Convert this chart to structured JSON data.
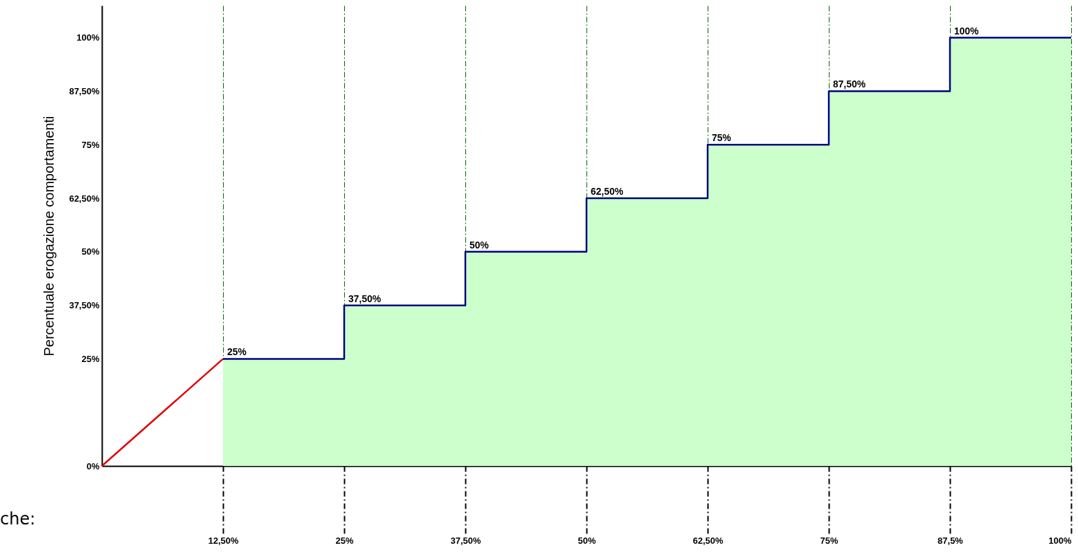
{
  "chart_data": {
    "type": "step",
    "ylabel": "Percentuale erogazione comportamenti",
    "x": [
      12.5,
      25,
      37.5,
      50,
      62.5,
      75,
      87.5,
      100
    ],
    "series": [
      {
        "type": "area",
        "color": "#ccffcc",
        "values": [
          25,
          37.5,
          50,
          62.5,
          75,
          87.5,
          100,
          100
        ]
      },
      {
        "type": "line",
        "color": "#e00000",
        "x": [
          0,
          12.5
        ],
        "values": [
          0,
          25
        ]
      },
      {
        "color": "#000080",
        "values": [
          25,
          37.5,
          50,
          62.5,
          75,
          87.5,
          100,
          100
        ],
        "value_labels": [
          "25%",
          "37,50%",
          "50%",
          "62,50%",
          "75%",
          "87,50%",
          "100%",
          null
        ]
      }
    ],
    "xlim": [
      0,
      100
    ],
    "ylim": [
      0,
      107.5
    ],
    "xticks": [
      {
        "value": 12.5,
        "label": "12,50%"
      },
      {
        "value": 25,
        "label": "25%"
      },
      {
        "value": 37.5,
        "label": "37,50%"
      },
      {
        "value": 50,
        "label": "50%"
      },
      {
        "value": 62.5,
        "label": "62,50%"
      },
      {
        "value": 75,
        "label": "75%"
      },
      {
        "value": 87.5,
        "label": "87,5%"
      },
      {
        "value": 100,
        "label": "100%"
      }
    ],
    "yticks": [
      {
        "value": 0,
        "label": "0%"
      },
      {
        "value": 25,
        "label": "25%"
      },
      {
        "value": 37.5,
        "label": "37,50%"
      },
      {
        "value": 50,
        "label": "50%"
      },
      {
        "value": 62.5,
        "label": "62,50%"
      },
      {
        "value": 75,
        "label": "75%"
      },
      {
        "value": 87.5,
        "label": "87,50%"
      },
      {
        "value": 100,
        "label": "100%"
      }
    ],
    "grid": "x",
    "annotations": [
      "che:"
    ]
  }
}
